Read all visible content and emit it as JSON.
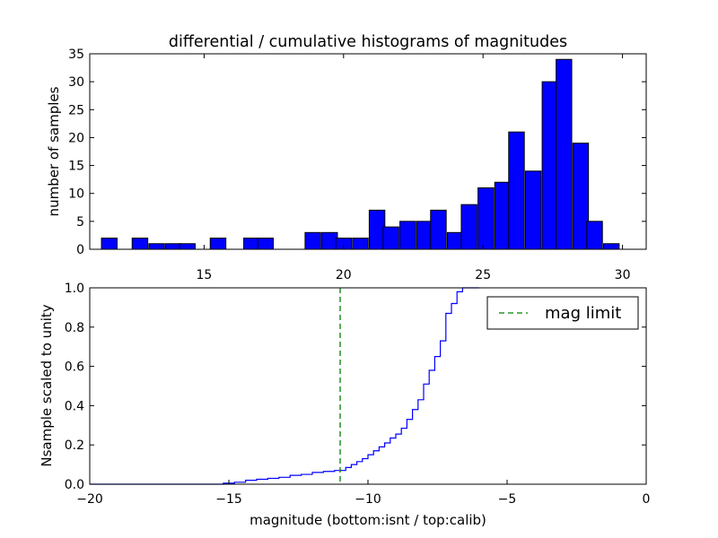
{
  "chart_data": [
    {
      "type": "bar",
      "title": "differential / cumulative histograms of magnitudes",
      "ylabel": "number of samples",
      "xlabel": "",
      "xlim": [
        10.9,
        30.85
      ],
      "ylim": [
        0,
        35
      ],
      "xticks": [
        15,
        20,
        25,
        30
      ],
      "yticks": [
        0,
        5,
        10,
        15,
        20,
        25,
        30,
        35
      ],
      "tick_labels_position": "x-axis labels shown below the plot (top axis of the bottom panel)",
      "color": "#0000ff",
      "bin_width": 0.56,
      "bins": [
        {
          "x": 11.6,
          "value": 2
        },
        {
          "x": 12.2,
          "value": 0
        },
        {
          "x": 12.7,
          "value": 2
        },
        {
          "x": 13.3,
          "value": 1
        },
        {
          "x": 13.9,
          "value": 1
        },
        {
          "x": 14.4,
          "value": 1
        },
        {
          "x": 15.0,
          "value": 0
        },
        {
          "x": 15.5,
          "value": 2
        },
        {
          "x": 16.1,
          "value": 0
        },
        {
          "x": 16.7,
          "value": 2
        },
        {
          "x": 17.2,
          "value": 2
        },
        {
          "x": 17.8,
          "value": 0
        },
        {
          "x": 18.4,
          "value": 0
        },
        {
          "x": 18.9,
          "value": 3
        },
        {
          "x": 19.5,
          "value": 3
        },
        {
          "x": 20.0,
          "value": 2
        },
        {
          "x": 20.6,
          "value": 2
        },
        {
          "x": 21.2,
          "value": 7
        },
        {
          "x": 21.7,
          "value": 4
        },
        {
          "x": 22.3,
          "value": 5
        },
        {
          "x": 22.9,
          "value": 5
        },
        {
          "x": 23.4,
          "value": 7
        },
        {
          "x": 24.0,
          "value": 3
        },
        {
          "x": 24.5,
          "value": 8
        },
        {
          "x": 25.1,
          "value": 11
        },
        {
          "x": 25.7,
          "value": 12
        },
        {
          "x": 26.2,
          "value": 21
        },
        {
          "x": 26.8,
          "value": 14
        },
        {
          "x": 27.4,
          "value": 30
        },
        {
          "x": 27.9,
          "value": 34
        },
        {
          "x": 28.5,
          "value": 19
        },
        {
          "x": 29.0,
          "value": 5
        },
        {
          "x": 29.6,
          "value": 1
        }
      ]
    },
    {
      "type": "line",
      "step": true,
      "xlabel": "magnitude (bottom:isnt / top:calib)",
      "ylabel": "Nsample scaled to unity",
      "xlim": [
        -20,
        0
      ],
      "ylim": [
        0,
        1.0
      ],
      "xticks": [
        -20,
        -15,
        -10,
        -5,
        0
      ],
      "yticks": [
        0.0,
        0.2,
        0.4,
        0.6,
        0.8,
        1.0
      ],
      "legend_position": "top-right",
      "series": [
        {
          "role": "cumulative",
          "color": "#0000ff",
          "x": [
            -20,
            -15.2,
            -14.8,
            -14.4,
            -14.0,
            -13.6,
            -13.2,
            -12.8,
            -12.4,
            -12.0,
            -11.6,
            -11.2,
            -10.8,
            -10.6,
            -10.4,
            -10.2,
            -10.0,
            -9.8,
            -9.6,
            -9.4,
            -9.2,
            -9.0,
            -8.8,
            -8.6,
            -8.4,
            -8.2,
            -8.0,
            -7.8,
            -7.6,
            -7.4,
            -7.2,
            -7.0,
            -6.8,
            -6.6
          ],
          "y": [
            0,
            0.005,
            0.01,
            0.02,
            0.025,
            0.03,
            0.035,
            0.045,
            0.05,
            0.06,
            0.065,
            0.07,
            0.085,
            0.1,
            0.115,
            0.13,
            0.15,
            0.17,
            0.19,
            0.21,
            0.235,
            0.255,
            0.285,
            0.33,
            0.38,
            0.43,
            0.51,
            0.58,
            0.65,
            0.73,
            0.87,
            0.92,
            0.98,
            1.0
          ]
        },
        {
          "name": "mag limit",
          "role": "reference-line",
          "style": "dashed",
          "color": "#008000",
          "x": -11
        }
      ]
    }
  ]
}
